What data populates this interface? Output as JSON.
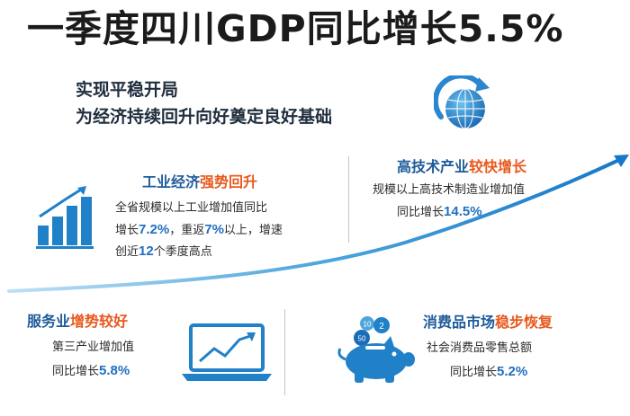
{
  "headline": "一季度四川GDP同比增长5.5%",
  "subheadline": {
    "line1": "实现平稳开局",
    "line2": "为经济持续回升向好奠定良好基础"
  },
  "industry": {
    "title_normal": "工业经济",
    "title_highlight": "强势回升",
    "line1_pre": "全省规模以上工业增加值同比",
    "line2_pre": "增长",
    "growth_1": "7.2%",
    "line2_mid": "，重返",
    "growth_2": "7%",
    "line2_post": "以上，增速",
    "line3_pre": "创近",
    "quarters": "12",
    "line3_post": "个季度高点"
  },
  "hightech": {
    "title_normal": "高技术产业",
    "title_highlight": "较快增长",
    "line1": "规模以上高技术制造业增加值",
    "line2_pre": "同比增长",
    "growth": "14.5%"
  },
  "services": {
    "title_normal": "服务业",
    "title_highlight": "增势较好",
    "line1": "第三产业增加值",
    "line2_pre": "同比增长",
    "growth": "5.8%"
  },
  "consumer": {
    "title_normal": "消费品市场",
    "title_highlight": "稳步恢复",
    "line1": "社会消费品零售总额",
    "line2_pre": "同比增长",
    "growth": "5.2%"
  },
  "coin_labels": [
    "10",
    "2",
    "50"
  ],
  "icons": [
    "globe-arrow-icon",
    "bar-chart-icon",
    "laptop-chart-icon",
    "piggy-bank-icon"
  ],
  "colors": {
    "accent_blue": "#1e5b9b",
    "highlight_orange": "#e8591e",
    "number_blue": "#1f6fc0",
    "curve_blue": "#1778c8"
  }
}
